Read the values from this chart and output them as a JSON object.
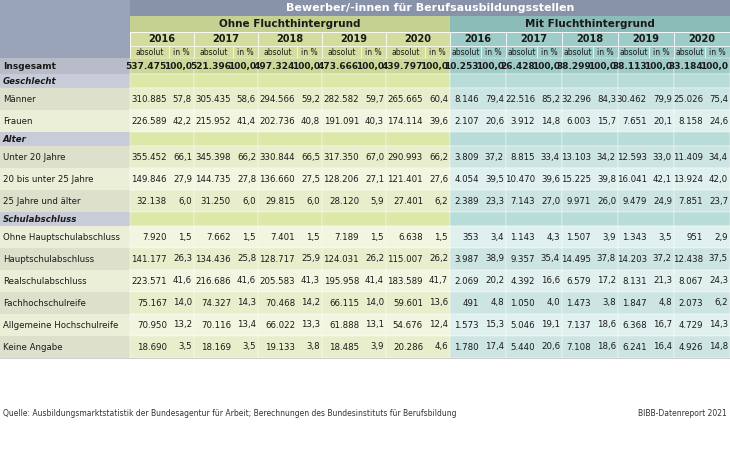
{
  "title": "Bewerber/-innen für Berufsausbildungsstellen",
  "subtitle_ohne": "Ohne Fluchthintergrund",
  "subtitle_mit": "Mit Fluchthintergrund",
  "source": "Quelle: Ausbildungsmarktstatistik der Bundesagentur für Arbeit; Berechnungen des Bundesinstituts für Berufsbildung",
  "source_right": "BIBB-Datenreport 2021",
  "rows": [
    {
      "label": "Insgesamt",
      "type": "insgesamt",
      "ohne": [
        [
          "537.475",
          "100,0"
        ],
        [
          "521.396",
          "100,0"
        ],
        [
          "497.324",
          "100,0"
        ],
        [
          "473.666",
          "100,0"
        ],
        [
          "439.797",
          "100,0"
        ]
      ],
      "mit": [
        [
          "10.253",
          "100,0"
        ],
        [
          "26.428",
          "100,0"
        ],
        [
          "38.299",
          "100,0"
        ],
        [
          "38.113",
          "100,0"
        ],
        [
          "33.184",
          "100,0"
        ]
      ]
    },
    {
      "label": "Geschlecht",
      "type": "section",
      "ohne": [
        [],
        [],
        [],
        [],
        []
      ],
      "mit": [
        [],
        [],
        [],
        [],
        []
      ]
    },
    {
      "label": "Männer",
      "type": "data",
      "ohne": [
        [
          "310.885",
          "57,8"
        ],
        [
          "305.435",
          "58,6"
        ],
        [
          "294.566",
          "59,2"
        ],
        [
          "282.582",
          "59,7"
        ],
        [
          "265.665",
          "60,4"
        ]
      ],
      "mit": [
        [
          "8.146",
          "79,4"
        ],
        [
          "22.516",
          "85,2"
        ],
        [
          "32.296",
          "84,3"
        ],
        [
          "30.462",
          "79,9"
        ],
        [
          "25.026",
          "75,4"
        ]
      ]
    },
    {
      "label": "Frauen",
      "type": "data",
      "ohne": [
        [
          "226.589",
          "42,2"
        ],
        [
          "215.952",
          "41,4"
        ],
        [
          "202.736",
          "40,8"
        ],
        [
          "191.091",
          "40,3"
        ],
        [
          "174.114",
          "39,6"
        ]
      ],
      "mit": [
        [
          "2.107",
          "20,6"
        ],
        [
          "3.912",
          "14,8"
        ],
        [
          "6.003",
          "15,7"
        ],
        [
          "7.651",
          "20,1"
        ],
        [
          "8.158",
          "24,6"
        ]
      ]
    },
    {
      "label": "Alter",
      "type": "section",
      "ohne": [
        [],
        [],
        [],
        [],
        []
      ],
      "mit": [
        [],
        [],
        [],
        [],
        []
      ]
    },
    {
      "label": "Unter 20 Jahre",
      "type": "data",
      "ohne": [
        [
          "355.452",
          "66,1"
        ],
        [
          "345.398",
          "66,2"
        ],
        [
          "330.844",
          "66,5"
        ],
        [
          "317.350",
          "67,0"
        ],
        [
          "290.993",
          "66,2"
        ]
      ],
      "mit": [
        [
          "3.809",
          "37,2"
        ],
        [
          "8.815",
          "33,4"
        ],
        [
          "13.103",
          "34,2"
        ],
        [
          "12.593",
          "33,0"
        ],
        [
          "11.409",
          "34,4"
        ]
      ]
    },
    {
      "label": "20 bis unter 25 Jahre",
      "type": "data",
      "ohne": [
        [
          "149.846",
          "27,9"
        ],
        [
          "144.735",
          "27,8"
        ],
        [
          "136.660",
          "27,5"
        ],
        [
          "128.206",
          "27,1"
        ],
        [
          "121.401",
          "27,6"
        ]
      ],
      "mit": [
        [
          "4.054",
          "39,5"
        ],
        [
          "10.470",
          "39,6"
        ],
        [
          "15.225",
          "39,8"
        ],
        [
          "16.041",
          "42,1"
        ],
        [
          "13.924",
          "42,0"
        ]
      ]
    },
    {
      "label": "25 Jahre und älter",
      "type": "data",
      "ohne": [
        [
          "32.138",
          "6,0"
        ],
        [
          "31.250",
          "6,0"
        ],
        [
          "29.815",
          "6,0"
        ],
        [
          "28.120",
          "5,9"
        ],
        [
          "27.401",
          "6,2"
        ]
      ],
      "mit": [
        [
          "2.389",
          "23,3"
        ],
        [
          "7.143",
          "27,0"
        ],
        [
          "9.971",
          "26,0"
        ],
        [
          "9.479",
          "24,9"
        ],
        [
          "7.851",
          "23,7"
        ]
      ]
    },
    {
      "label": "Schulabschluss",
      "type": "section",
      "ohne": [
        [],
        [],
        [],
        [],
        []
      ],
      "mit": [
        [],
        [],
        [],
        [],
        []
      ]
    },
    {
      "label": "Ohne Hauptschulabschluss",
      "type": "data",
      "ohne": [
        [
          "7.920",
          "1,5"
        ],
        [
          "7.662",
          "1,5"
        ],
        [
          "7.401",
          "1,5"
        ],
        [
          "7.189",
          "1,5"
        ],
        [
          "6.638",
          "1,5"
        ]
      ],
      "mit": [
        [
          "353",
          "3,4"
        ],
        [
          "1.143",
          "4,3"
        ],
        [
          "1.507",
          "3,9"
        ],
        [
          "1.343",
          "3,5"
        ],
        [
          "951",
          "2,9"
        ]
      ]
    },
    {
      "label": "Hauptschulabschluss",
      "type": "data",
      "ohne": [
        [
          "141.177",
          "26,3"
        ],
        [
          "134.436",
          "25,8"
        ],
        [
          "128.717",
          "25,9"
        ],
        [
          "124.031",
          "26,2"
        ],
        [
          "115.007",
          "26,2"
        ]
      ],
      "mit": [
        [
          "3.987",
          "38,9"
        ],
        [
          "9.357",
          "35,4"
        ],
        [
          "14.495",
          "37,8"
        ],
        [
          "14.203",
          "37,2"
        ],
        [
          "12.438",
          "37,5"
        ]
      ]
    },
    {
      "label": "Realschulabschluss",
      "type": "data",
      "ohne": [
        [
          "223.571",
          "41,6"
        ],
        [
          "216.686",
          "41,6"
        ],
        [
          "205.583",
          "41,3"
        ],
        [
          "195.958",
          "41,4"
        ],
        [
          "183.589",
          "41,7"
        ]
      ],
      "mit": [
        [
          "2.069",
          "20,2"
        ],
        [
          "4.392",
          "16,6"
        ],
        [
          "6.579",
          "17,2"
        ],
        [
          "8.131",
          "21,3"
        ],
        [
          "8.067",
          "24,3"
        ]
      ]
    },
    {
      "label": "Fachhochschulreife",
      "type": "data",
      "ohne": [
        [
          "75.167",
          "14,0"
        ],
        [
          "74.327",
          "14,3"
        ],
        [
          "70.468",
          "14,2"
        ],
        [
          "66.115",
          "14,0"
        ],
        [
          "59.601",
          "13,6"
        ]
      ],
      "mit": [
        [
          "491",
          "4,8"
        ],
        [
          "1.050",
          "4,0"
        ],
        [
          "1.473",
          "3,8"
        ],
        [
          "1.847",
          "4,8"
        ],
        [
          "2.073",
          "6,2"
        ]
      ]
    },
    {
      "label": "Allgemeine Hochschulreife",
      "type": "data",
      "ohne": [
        [
          "70.950",
          "13,2"
        ],
        [
          "70.116",
          "13,4"
        ],
        [
          "66.022",
          "13,3"
        ],
        [
          "61.888",
          "13,1"
        ],
        [
          "54.676",
          "12,4"
        ]
      ],
      "mit": [
        [
          "1.573",
          "15,3"
        ],
        [
          "5.046",
          "19,1"
        ],
        [
          "7.137",
          "18,6"
        ],
        [
          "6.368",
          "16,7"
        ],
        [
          "4.729",
          "14,3"
        ]
      ]
    },
    {
      "label": "Keine Angabe",
      "type": "data",
      "ohne": [
        [
          "18.690",
          "3,5"
        ],
        [
          "18.169",
          "3,5"
        ],
        [
          "19.133",
          "3,8"
        ],
        [
          "18.485",
          "3,9"
        ],
        [
          "20.286",
          "4,6"
        ]
      ],
      "mit": [
        [
          "1.780",
          "17,4"
        ],
        [
          "5.440",
          "20,6"
        ],
        [
          "7.108",
          "18,6"
        ],
        [
          "6.241",
          "16,4"
        ],
        [
          "4.926",
          "14,8"
        ]
      ]
    }
  ],
  "col_label_bg": "#9aa4b8",
  "header_top_bg": "#8892a8",
  "ohne_header_bg": "#c5d191",
  "ohne_year_bg": "#d4dc9e",
  "ohne_abs_bg_1": "#e8eecc",
  "ohne_abs_bg_2": "#f2f5e0",
  "mit_header_bg": "#8bbcb8",
  "mit_year_bg": "#9eccc8",
  "mit_abs_bg_1": "#cce4e2",
  "mit_abs_bg_2": "#dff0ee",
  "insgesamt_ohne_bg": "#ccd898",
  "insgesamt_mit_bg": "#9eccc8",
  "section_ohne_bg": "#dce8a8",
  "section_mit_bg": "#b8dcd8",
  "section_label_bg": "#c8ccd8",
  "insgesamt_label_bg": "#b8bcc8"
}
